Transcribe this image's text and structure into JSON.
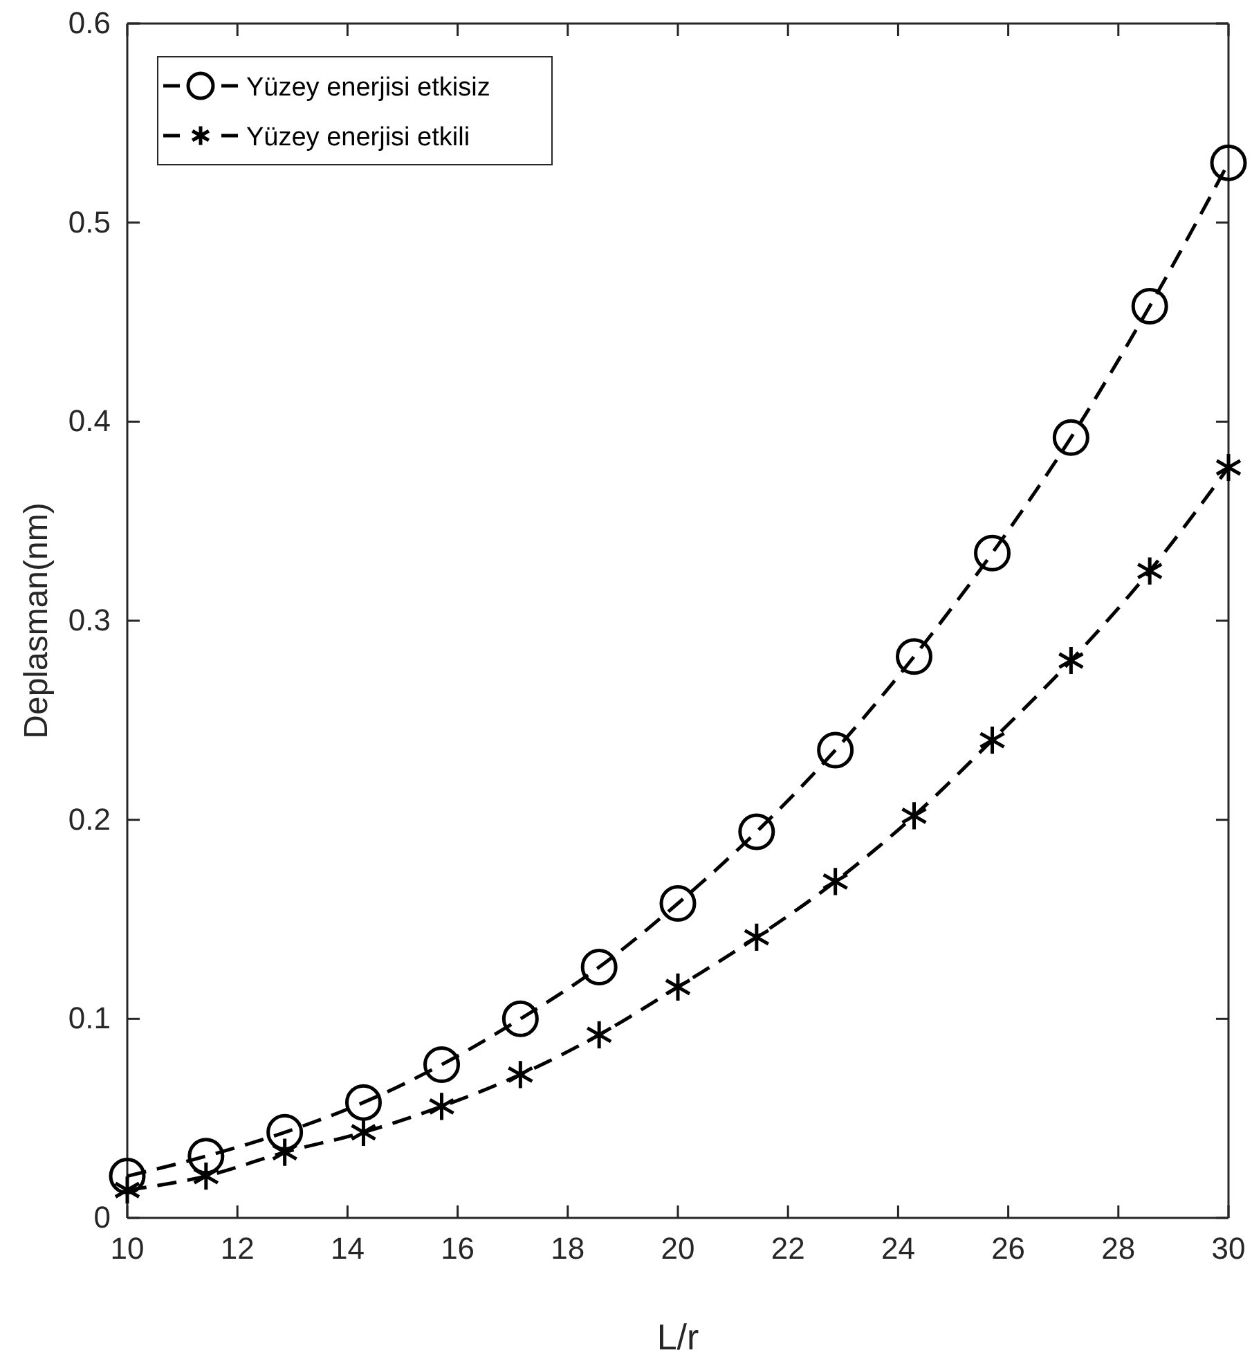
{
  "chart_data": {
    "type": "line",
    "xlabel": "L/r",
    "ylabel": "Deplasman(nm)",
    "x": [
      10,
      11.43,
      12.86,
      14.29,
      15.71,
      17.14,
      18.57,
      20,
      21.43,
      22.86,
      24.29,
      25.71,
      27.14,
      28.57,
      30
    ],
    "series": [
      {
        "name": "Yüzey enerjisi etkisiz",
        "color": "#000000",
        "marker": "circle",
        "values": [
          0.021,
          0.031,
          0.043,
          0.058,
          0.077,
          0.1,
          0.126,
          0.158,
          0.194,
          0.235,
          0.282,
          0.334,
          0.392,
          0.458,
          0.53
        ]
      },
      {
        "name": "Yüzey enerjisi etkili",
        "color": "#000000",
        "marker": "cross",
        "values": [
          0.014,
          0.021,
          0.033,
          0.043,
          0.056,
          0.072,
          0.092,
          0.116,
          0.141,
          0.169,
          0.202,
          0.24,
          0.28,
          0.325,
          0.377
        ]
      }
    ],
    "xlim": [
      10,
      30
    ],
    "xticks": [
      10,
      12,
      14,
      16,
      18,
      20,
      22,
      24,
      26,
      28,
      30
    ],
    "ylim": [
      0,
      0.6
    ],
    "yticks": [
      0,
      0.1,
      0.2,
      0.3,
      0.4,
      0.5,
      0.6
    ],
    "grid": false,
    "legend": "top left",
    "line_style": "dashed"
  }
}
